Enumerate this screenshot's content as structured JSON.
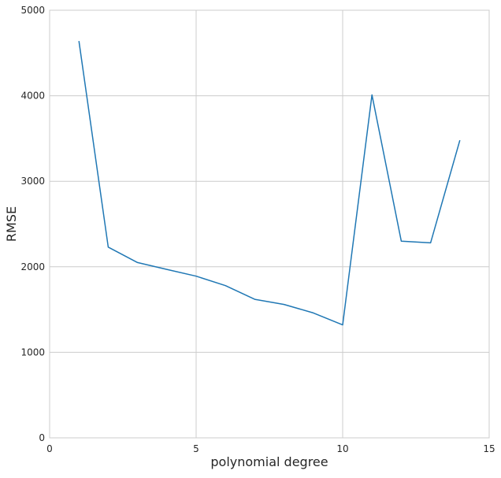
{
  "chart_data": {
    "type": "line",
    "title": "",
    "xlabel": "polynomial degree",
    "ylabel": "RMSE",
    "xlim": [
      0,
      15
    ],
    "ylim": [
      0,
      5000
    ],
    "xticks": [
      0,
      5,
      10,
      15
    ],
    "yticks": [
      0,
      1000,
      2000,
      3000,
      4000,
      5000
    ],
    "grid": true,
    "line_color": "#1f77b4",
    "series": [
      {
        "x": [
          1,
          2,
          3,
          4,
          5,
          6,
          7,
          8,
          9,
          10,
          11,
          12,
          13,
          14
        ],
        "values": [
          4640,
          2230,
          2050,
          1970,
          1890,
          1780,
          1620,
          1560,
          1460,
          1320,
          4010,
          2300,
          2280,
          3480
        ]
      }
    ]
  }
}
